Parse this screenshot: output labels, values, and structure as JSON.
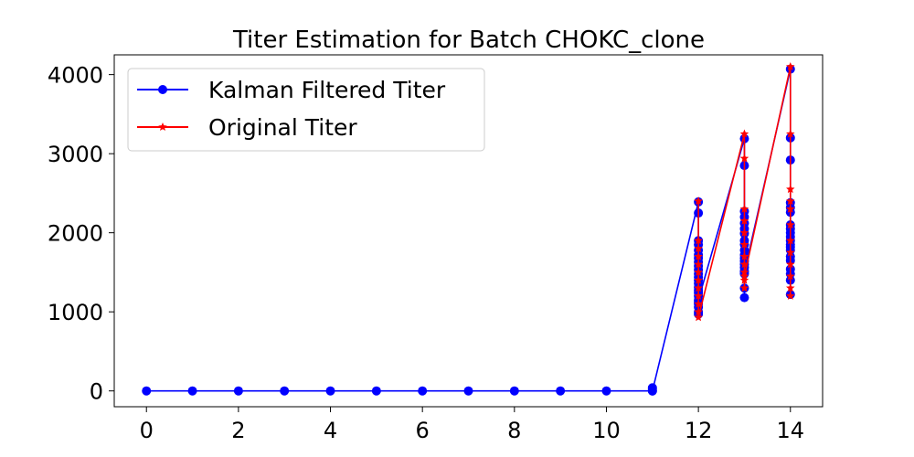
{
  "chart_data": {
    "type": "line",
    "title": "Titer Estimation for Batch CHOKC_clone",
    "xlabel": "",
    "ylabel": "",
    "xlim": [
      -0.7,
      14.7
    ],
    "ylim": [
      -200,
      4250
    ],
    "xticks": [
      0,
      2,
      4,
      6,
      8,
      10,
      12,
      14
    ],
    "yticks": [
      0,
      1000,
      2000,
      3000,
      4000
    ],
    "grid": false,
    "legend_position": "top-left",
    "series": [
      {
        "name": "Kalman Filtered Titer",
        "color": "#0000ff",
        "marker": "circle",
        "x": [
          0,
          1,
          2,
          3,
          4,
          5,
          6,
          7,
          8,
          9,
          10,
          11,
          11,
          11,
          11,
          12,
          12,
          12,
          12,
          12,
          12,
          12,
          12,
          12,
          12,
          12,
          12,
          12,
          12,
          12,
          12,
          12,
          12,
          12,
          12,
          12,
          12,
          12,
          12,
          13,
          13,
          13,
          13,
          13,
          13,
          13,
          13,
          13,
          13,
          13,
          13,
          13,
          13,
          13,
          13,
          13,
          13,
          13,
          13,
          14,
          14,
          14,
          14,
          14,
          14,
          14,
          14,
          14,
          14,
          14,
          14,
          14,
          14,
          14,
          14,
          14,
          14,
          14,
          14
        ],
        "y": [
          0,
          0,
          0,
          0,
          0,
          0,
          0,
          0,
          0,
          0,
          0,
          0,
          20,
          40,
          0,
          2390,
          2250,
          1900,
          1850,
          1780,
          1720,
          1680,
          1630,
          1580,
          1530,
          1480,
          1440,
          1400,
          1360,
          1310,
          1270,
          1240,
          1200,
          1120,
          1060,
          1000,
          970,
          1100,
          1150,
          3190,
          2850,
          2270,
          2200,
          2120,
          2050,
          1990,
          1900,
          1850,
          1780,
          1720,
          1680,
          1640,
          1600,
          1560,
          1520,
          1480,
          1300,
          1180,
          1500,
          4070,
          3200,
          2920,
          2380,
          2320,
          2260,
          2100,
          2050,
          2000,
          1950,
          1900,
          1850,
          1820,
          1780,
          1700,
          1650,
          1540,
          1480,
          1400,
          1220
        ]
      },
      {
        "name": "Original Titer",
        "color": "#ff0000",
        "marker": "star",
        "x": [
          12,
          12,
          12,
          12,
          12,
          12,
          12,
          12,
          12,
          12,
          12,
          12,
          13,
          13,
          13,
          13,
          13,
          13,
          13,
          13,
          13,
          13,
          13,
          13,
          14,
          14,
          14,
          14,
          14,
          14,
          14,
          14,
          14,
          14,
          14,
          14
        ],
        "y": [
          2400,
          1900,
          1800,
          1700,
          1600,
          1500,
          1400,
          1300,
          1200,
          1100,
          1000,
          930,
          3250,
          2940,
          2300,
          2150,
          2000,
          1850,
          1700,
          1600,
          1500,
          1400,
          1300,
          1450,
          4100,
          3250,
          2550,
          2400,
          2300,
          2100,
          1900,
          1750,
          1600,
          1450,
          1300,
          1200
        ]
      }
    ]
  }
}
